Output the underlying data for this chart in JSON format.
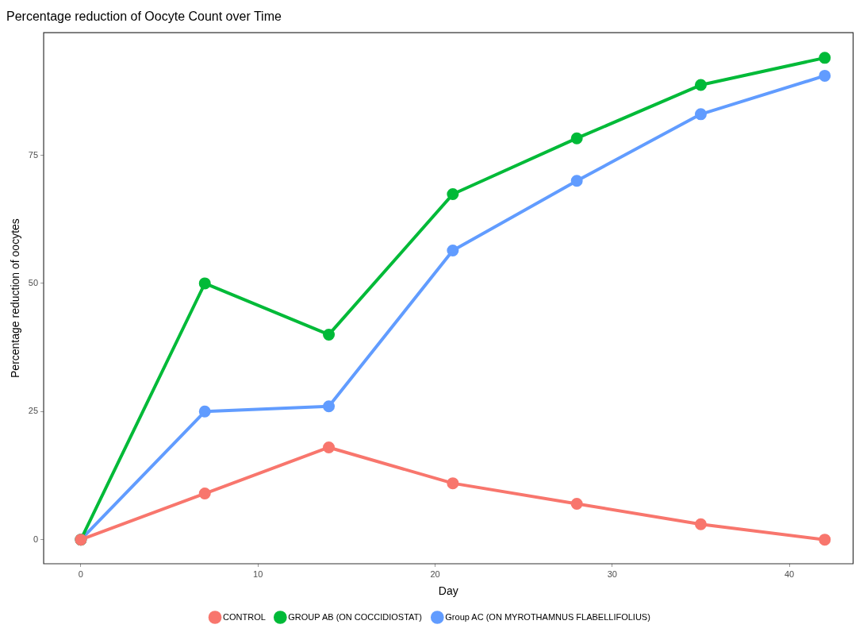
{
  "chart_data": {
    "type": "line",
    "title": "Percentage reduction of Oocyte Count over Time",
    "xlabel": "Day",
    "ylabel": "Percentage reduction of oocytes",
    "x": [
      0,
      7,
      14,
      21,
      28,
      35,
      42
    ],
    "series": [
      {
        "name": "CONTROL",
        "color": "#f8766d",
        "values": [
          0,
          9,
          18,
          11,
          7,
          3,
          0
        ]
      },
      {
        "name": "GROUP AB (ON COCCIDIOSTAT)",
        "color": "#00ba38",
        "values": [
          0,
          50,
          40,
          67.4,
          78.3,
          88.7,
          94
        ]
      },
      {
        "name": "Group AC (ON MYROTHAMNUS FLABELLIFOLIUS)",
        "color": "#619cff",
        "values": [
          0,
          25,
          26,
          56.4,
          70,
          83,
          90.5
        ]
      }
    ],
    "xlim": [
      -2.1,
      43.6
    ],
    "ylim": [
      -4.7,
      98.9
    ],
    "xticks": [
      0,
      10,
      20,
      30,
      40
    ],
    "yticks": [
      0,
      25,
      50,
      75
    ],
    "grid": false,
    "legend": "bottom",
    "marker": "circle",
    "line_style": "solid"
  }
}
